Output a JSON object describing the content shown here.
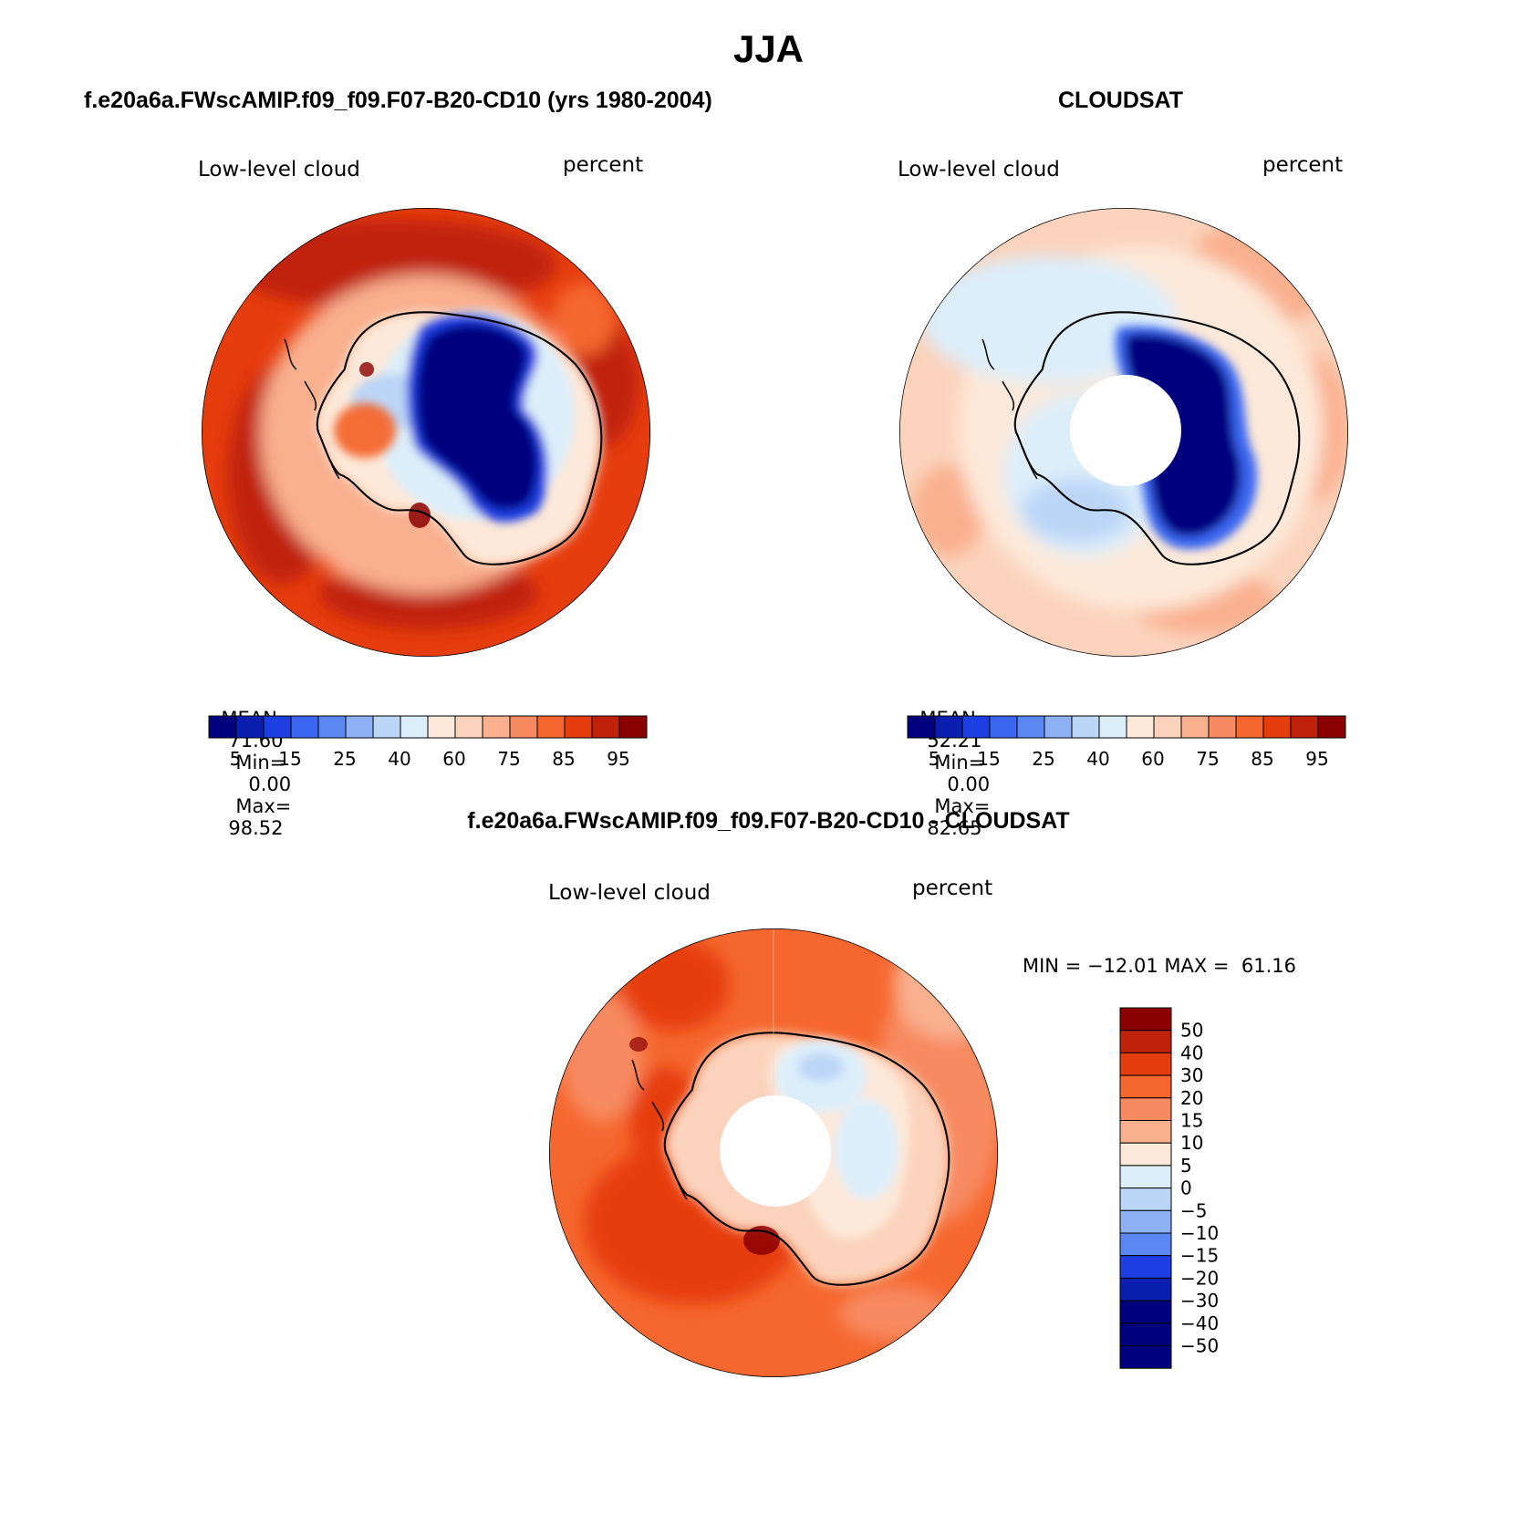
{
  "figure": {
    "title": "JJA"
  },
  "panels": [
    {
      "id": "model",
      "case_title": "f.e20a6a.FWscAMIP.f09_f09.F07-B20-CD10 (yrs 1980-2004)",
      "left_label": "Low-level cloud",
      "right_label": "percent",
      "stats": {
        "mean_label": "MEAN=",
        "mean": "71.60",
        "min_label": "Min=",
        "min": "0.00",
        "max_label": "Max=",
        "max": "98.52"
      }
    },
    {
      "id": "obs",
      "case_title": "CLOUDSAT",
      "left_label": "Low-level cloud",
      "right_label": "percent",
      "stats": {
        "mean_label": "MEAN=",
        "mean": "52.21",
        "min_label": "Min=",
        "min": "0.00",
        "max_label": "Max=",
        "max": "82.65"
      }
    },
    {
      "id": "diff",
      "case_title": "f.e20a6a.FWscAMIP.f09_f09.F07-B20-CD10 - CLOUDSAT",
      "left_label": "Low-level cloud",
      "right_label": "percent",
      "stats_text": "MIN = −12.01 MAX =  61.16"
    }
  ],
  "chart_data": [
    {
      "type": "heatmap",
      "projection": "south polar stereographic",
      "title": "Low-level cloud",
      "units": "percent",
      "summary": {
        "mean": 71.6,
        "min": 0.0,
        "max": 98.52
      },
      "colorbar": {
        "orientation": "horizontal",
        "colors": [
          "#00007f",
          "#0a1fb0",
          "#1d3ee0",
          "#3a66f0",
          "#5b87f2",
          "#8eb0f5",
          "#bcd6f7",
          "#dceefa",
          "#fde9d9",
          "#fbd3bc",
          "#f9b08f",
          "#f78a60",
          "#f5672f",
          "#e63d0f",
          "#c02209",
          "#8b0000"
        ],
        "tick_labels": [
          "5",
          "15",
          "25",
          "40",
          "60",
          "75",
          "85",
          "95"
        ]
      }
    },
    {
      "type": "heatmap",
      "projection": "south polar stereographic",
      "title": "Low-level cloud",
      "units": "percent",
      "summary": {
        "mean": 52.21,
        "min": 0.0,
        "max": 82.65
      },
      "colorbar": {
        "orientation": "horizontal",
        "colors": [
          "#00007f",
          "#0a1fb0",
          "#1d3ee0",
          "#3a66f0",
          "#5b87f2",
          "#8eb0f5",
          "#bcd6f7",
          "#dceefa",
          "#fde9d9",
          "#fbd3bc",
          "#f9b08f",
          "#f78a60",
          "#f5672f",
          "#e63d0f",
          "#c02209",
          "#8b0000"
        ],
        "tick_labels": [
          "5",
          "15",
          "25",
          "40",
          "60",
          "75",
          "85",
          "95"
        ]
      }
    },
    {
      "type": "heatmap",
      "projection": "south polar stereographic",
      "title": "Low-level cloud",
      "units": "percent",
      "summary": {
        "min": -12.01,
        "max": 61.16
      },
      "colorbar": {
        "orientation": "vertical",
        "colors": [
          "#8b0000",
          "#c02209",
          "#e63d0f",
          "#f5672f",
          "#f78a60",
          "#f9b08f",
          "#fde9d9",
          "#dceefa",
          "#bcd6f7",
          "#8eb0f5",
          "#5b87f2",
          "#1d3ee0",
          "#0a1fb0",
          "#00007f",
          "#00007f",
          "#00007f"
        ],
        "tick_labels": [
          "50",
          "40",
          "30",
          "20",
          "15",
          "10",
          "5",
          "0",
          "−5",
          "−10",
          "−15",
          "−20",
          "−30",
          "−40",
          "−50"
        ]
      }
    }
  ]
}
